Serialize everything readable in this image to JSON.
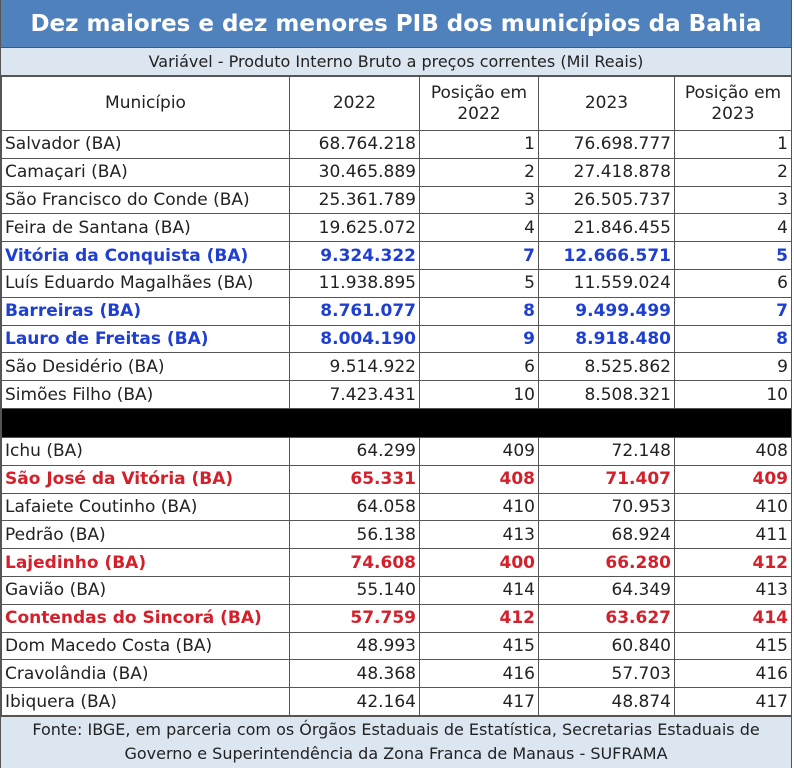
{
  "header": {
    "title": "Dez maiores e dez menores PIB dos municípios da Bahia",
    "subtitle": "Variável - Produto Interno Bruto a preços correntes (Mil Reais)"
  },
  "table": {
    "columns": [
      "Município",
      "2022",
      "Posição em 2022",
      "2023",
      "Posição em 2023"
    ],
    "top_rows": [
      {
        "cells": [
          "Salvador (BA)",
          "68.764.218",
          1,
          "76.698.777",
          1
        ]
      },
      {
        "cells": [
          "Camaçari (BA)",
          "30.465.889",
          2,
          "27.418.878",
          2
        ]
      },
      {
        "cells": [
          "São Francisco do Conde (BA)",
          "25.361.789",
          3,
          "26.505.737",
          3
        ]
      },
      {
        "cells": [
          "Feira de Santana (BA)",
          "19.625.072",
          4,
          "21.846.455",
          4
        ]
      },
      {
        "cells": [
          "Vitória da Conquista (BA)",
          "9.324.322",
          7,
          "12.666.571",
          5
        ],
        "color": "#1f3fd0"
      },
      {
        "cells": [
          "Luís Eduardo Magalhães (BA)",
          "11.938.895",
          5,
          "11.559.024",
          6
        ]
      },
      {
        "cells": [
          "Barreiras (BA)",
          "8.761.077",
          8,
          "9.499.499",
          7
        ],
        "color": "#1f3fd0"
      },
      {
        "cells": [
          "Lauro de Freitas (BA)",
          "8.004.190",
          9,
          "8.918.480",
          8
        ],
        "color": "#1f3fd0"
      },
      {
        "cells": [
          "São Desidério (BA)",
          "9.514.922",
          6,
          "8.525.862",
          9
        ]
      },
      {
        "cells": [
          "Simões Filho (BA)",
          "7.423.431",
          10,
          "8.508.321",
          10
        ]
      }
    ],
    "bottom_rows": [
      {
        "cells": [
          "Ichu (BA)",
          "64.299",
          409,
          "72.148",
          408
        ]
      },
      {
        "cells": [
          "São José da Vitória (BA)",
          "65.331",
          408,
          "71.407",
          409
        ],
        "color": "#d3202b"
      },
      {
        "cells": [
          "Lafaiete Coutinho (BA)",
          "64.058",
          410,
          "70.953",
          410
        ]
      },
      {
        "cells": [
          "Pedrão (BA)",
          "56.138",
          413,
          "68.924",
          411
        ]
      },
      {
        "cells": [
          "Lajedinho (BA)",
          "74.608",
          400,
          "66.280",
          412
        ],
        "color": "#d3202b"
      },
      {
        "cells": [
          "Gavião (BA)",
          "55.140",
          414,
          "64.349",
          413
        ]
      },
      {
        "cells": [
          "Contendas do Sincorá (BA)",
          "57.759",
          412,
          "63.627",
          414
        ],
        "color": "#d3202b"
      },
      {
        "cells": [
          "Dom Macedo Costa (BA)",
          "48.993",
          415,
          "60.840",
          415
        ]
      },
      {
        "cells": [
          "Cravolândia (BA)",
          "48.368",
          416,
          "57.703",
          416
        ]
      },
      {
        "cells": [
          "Ibiquera (BA)",
          "42.164",
          417,
          "48.874",
          417
        ]
      }
    ]
  },
  "footer": {
    "source": "Fonte: IBGE, em parceria com os Órgãos Estaduais de Estatística, Secretarias Estaduais de Governo e Superintendência da Zona Franca de Manaus - SUFRAMA"
  }
}
